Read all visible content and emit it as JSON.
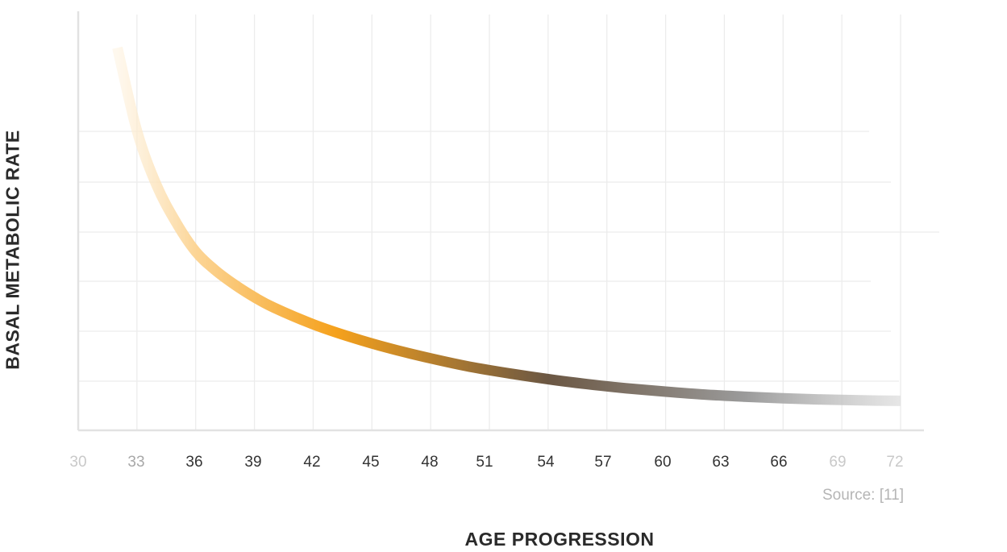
{
  "chart_data": {
    "type": "line",
    "xlabel": "AGE PROGRESSION",
    "ylabel": "BASAL METABOLIC RATE",
    "xlim": [
      30,
      72
    ],
    "x_ticks": [
      "30",
      "33",
      "36",
      "39",
      "42",
      "45",
      "48",
      "51",
      "54",
      "57",
      "60",
      "63",
      "66",
      "69",
      "72"
    ],
    "ylim": [
      0,
      100
    ],
    "grid": true,
    "series": [
      {
        "x": [
          32,
          33,
          34,
          35,
          36,
          37,
          38,
          39,
          40,
          42,
          44,
          46,
          48,
          50,
          52,
          54,
          56,
          58,
          60,
          62,
          64,
          66,
          68,
          70,
          72
        ],
        "y": [
          92,
          72,
          59,
          50,
          43,
          38.5,
          35,
          32,
          29.5,
          25.5,
          22.3,
          19.6,
          17.3,
          15.3,
          13.7,
          12.3,
          11.1,
          10.1,
          9.3,
          8.6,
          8.1,
          7.7,
          7.4,
          7.2,
          7.1
        ]
      }
    ],
    "gradient_colors": [
      "#fdf1dc",
      "#fcd596",
      "#f5a11c",
      "#6b5743",
      "#d6d6d6"
    ],
    "grid_color": "#ececec",
    "source": "Source: [11]"
  }
}
